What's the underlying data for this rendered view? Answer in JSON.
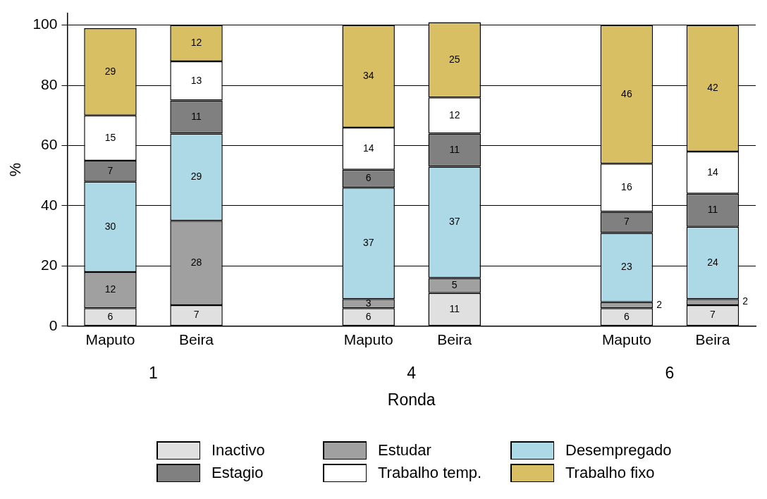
{
  "chart_data": {
    "type": "bar",
    "stacked": true,
    "xlabel": "Ronda",
    "ylabel": "%",
    "categories": [
      "Maputo",
      "Beira",
      null,
      "Maputo",
      "Beira",
      null,
      "Maputo",
      "Beira"
    ],
    "annotations": [
      "1",
      "4",
      "6"
    ],
    "series": [
      {
        "name": "Inactivo",
        "color": "#e0e0e0",
        "values": [
          6,
          7,
          null,
          6,
          11,
          null,
          6,
          7
        ]
      },
      {
        "name": "Estudar",
        "color": "#a0a0a0",
        "values": [
          12,
          28,
          null,
          3,
          5,
          null,
          2,
          2
        ]
      },
      {
        "name": "Desempregado",
        "color": "#add8e6",
        "values": [
          30,
          29,
          null,
          37,
          37,
          null,
          23,
          24
        ]
      },
      {
        "name": "Estagio",
        "color": "#808080",
        "values": [
          7,
          11,
          null,
          6,
          11,
          null,
          7,
          11
        ]
      },
      {
        "name": "Trabalho temp.",
        "color": "#ffffff",
        "values": [
          15,
          13,
          null,
          14,
          12,
          null,
          16,
          14
        ]
      },
      {
        "name": "Trabalho fixo",
        "color": "#d9bf63",
        "values": [
          29,
          12,
          null,
          34,
          25,
          null,
          46,
          42
        ]
      }
    ],
    "ylim": [
      0,
      104
    ],
    "yticks": [
      0,
      20,
      40,
      60,
      80,
      100
    ],
    "grid": "y",
    "legend": "bottom",
    "data_labels": true
  }
}
